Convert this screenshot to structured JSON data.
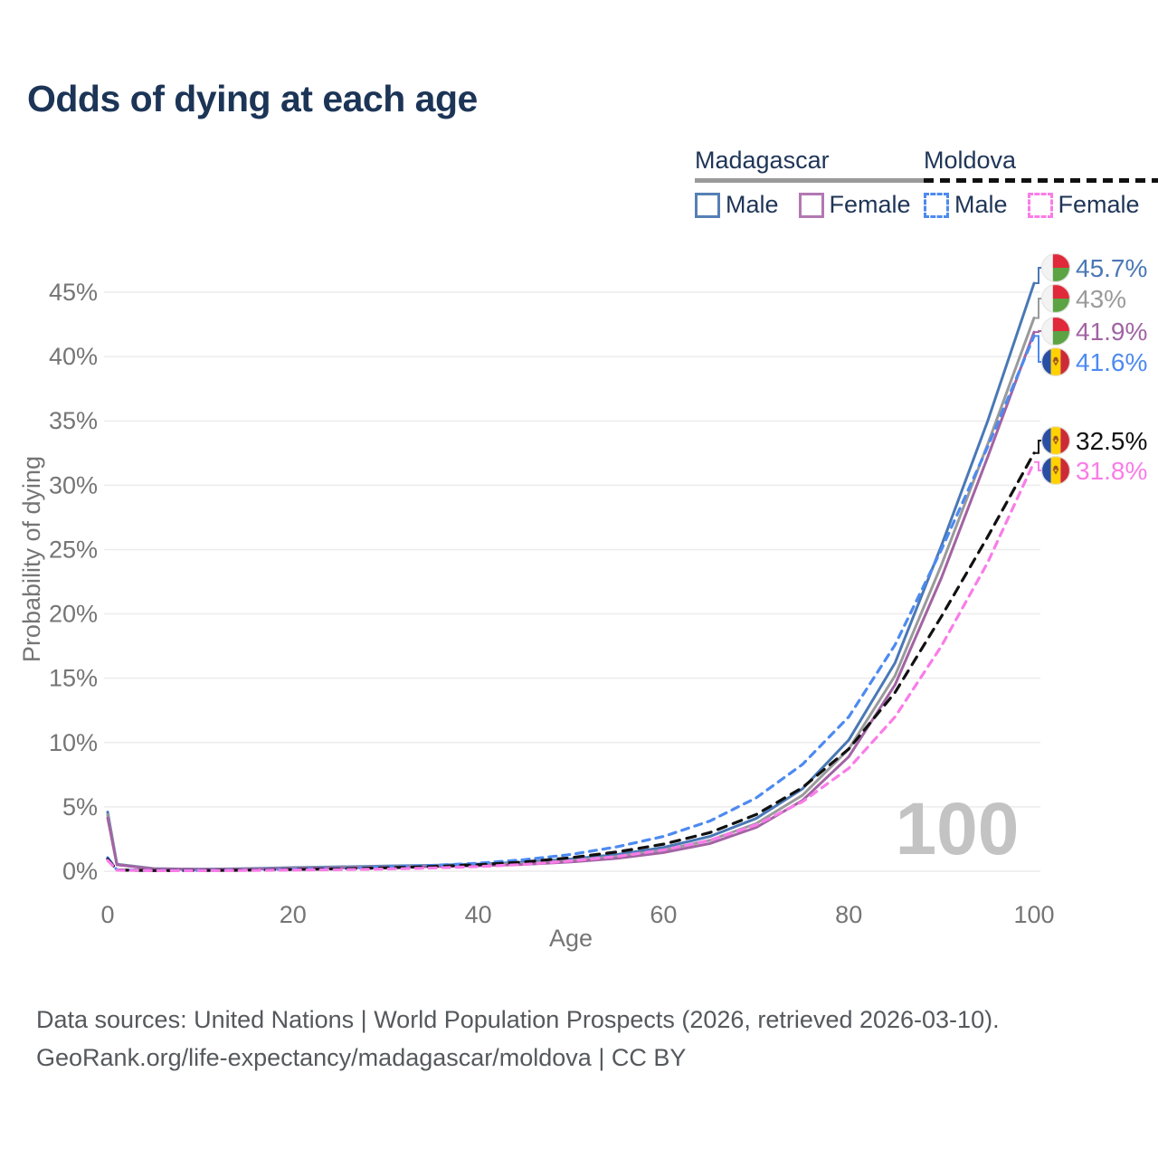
{
  "page": {
    "title": "Odds of dying at each age",
    "watermark": "100",
    "source_line1": "Data sources: United Nations | World Population Prospects (2026, retrieved 2026-03-10).",
    "source_line2": "GeoRank.org/life-expectancy/madagascar/moldova | CC BY"
  },
  "legend": {
    "groups": [
      {
        "country": "Madagascar",
        "line_style": "solid",
        "underline_color": "#9a9a9a",
        "items": [
          {
            "label": "Male",
            "color": "#4a78b5",
            "dashed": false
          },
          {
            "label": "Female",
            "color": "#a263a3",
            "dashed": false
          }
        ]
      },
      {
        "country": "Moldova",
        "line_style": "dashed",
        "underline_color": "#111111",
        "items": [
          {
            "label": "Male",
            "color": "#4d8af0",
            "dashed": true
          },
          {
            "label": "Female",
            "color": "#f97ce8",
            "dashed": true
          }
        ]
      }
    ]
  },
  "chart_data": {
    "type": "line",
    "title": "Odds of dying at each age",
    "xlabel": "Age",
    "ylabel": "Probability of dying",
    "xlim": [
      0,
      100
    ],
    "ylim": [
      0,
      45
    ],
    "xticks": [
      0,
      20,
      40,
      60,
      80,
      100
    ],
    "yticks": [
      0,
      5,
      10,
      15,
      20,
      25,
      30,
      35,
      40,
      45
    ],
    "grid": "horizontal",
    "legend_position": "top-right",
    "x": [
      0,
      1,
      5,
      10,
      15,
      20,
      25,
      30,
      35,
      40,
      45,
      50,
      55,
      60,
      65,
      70,
      75,
      80,
      85,
      90,
      95,
      100
    ],
    "series": [
      {
        "name": "Madagascar Male",
        "country": "Madagascar",
        "sex": "Male",
        "color": "#4a78b5",
        "dash": "solid",
        "flag": "madagascar",
        "end_label": "45.7%",
        "values": [
          4.6,
          0.55,
          0.2,
          0.16,
          0.2,
          0.28,
          0.34,
          0.4,
          0.46,
          0.55,
          0.7,
          0.95,
          1.3,
          1.85,
          2.7,
          4.1,
          6.4,
          10.2,
          16.2,
          25.3,
          35.0,
          45.7
        ]
      },
      {
        "name": "Madagascar Both sexes",
        "country": "Madagascar",
        "sex": "Both",
        "color": "#9a9a9a",
        "dash": "solid",
        "flag": "madagascar",
        "end_label": "43%",
        "values": [
          4.4,
          0.52,
          0.19,
          0.15,
          0.18,
          0.25,
          0.3,
          0.35,
          0.41,
          0.48,
          0.61,
          0.83,
          1.15,
          1.65,
          2.4,
          3.7,
          5.9,
          9.5,
          15.2,
          23.8,
          33.2,
          43.0
        ]
      },
      {
        "name": "Madagascar Female",
        "country": "Madagascar",
        "sex": "Female",
        "color": "#a263a3",
        "dash": "solid",
        "flag": "madagascar",
        "end_label": "41.9%",
        "values": [
          4.15,
          0.5,
          0.18,
          0.14,
          0.16,
          0.21,
          0.26,
          0.31,
          0.36,
          0.42,
          0.53,
          0.72,
          1.0,
          1.45,
          2.15,
          3.4,
          5.5,
          8.9,
          14.5,
          22.8,
          32.2,
          41.9
        ]
      },
      {
        "name": "Moldova Male",
        "country": "Moldova",
        "sex": "Male",
        "color": "#4d8af0",
        "dash": "dashed",
        "flag": "moldova",
        "end_label": "41.6%",
        "values": [
          1.05,
          0.1,
          0.06,
          0.06,
          0.1,
          0.16,
          0.22,
          0.32,
          0.45,
          0.62,
          0.9,
          1.3,
          1.9,
          2.7,
          3.9,
          5.7,
          8.3,
          12.0,
          17.6,
          25.0,
          33.0,
          41.6
        ]
      },
      {
        "name": "Moldova Both sexes",
        "country": "Moldova",
        "sex": "Both",
        "color": "#111111",
        "dash": "dashed",
        "flag": "moldova",
        "end_label": "32.5%",
        "values": [
          0.95,
          0.09,
          0.05,
          0.05,
          0.08,
          0.13,
          0.18,
          0.26,
          0.36,
          0.5,
          0.72,
          1.05,
          1.5,
          2.1,
          3.0,
          4.4,
          6.5,
          9.5,
          13.9,
          19.8,
          26.0,
          32.5
        ]
      },
      {
        "name": "Moldova Female",
        "country": "Moldova",
        "sex": "Female",
        "color": "#f97ce8",
        "dash": "dashed",
        "flag": "moldova",
        "end_label": "31.8%",
        "values": [
          0.85,
          0.08,
          0.04,
          0.04,
          0.06,
          0.09,
          0.12,
          0.17,
          0.25,
          0.36,
          0.53,
          0.8,
          1.15,
          1.65,
          2.4,
          3.6,
          5.4,
          8.0,
          12.0,
          17.5,
          24.0,
          31.8
        ]
      }
    ]
  }
}
